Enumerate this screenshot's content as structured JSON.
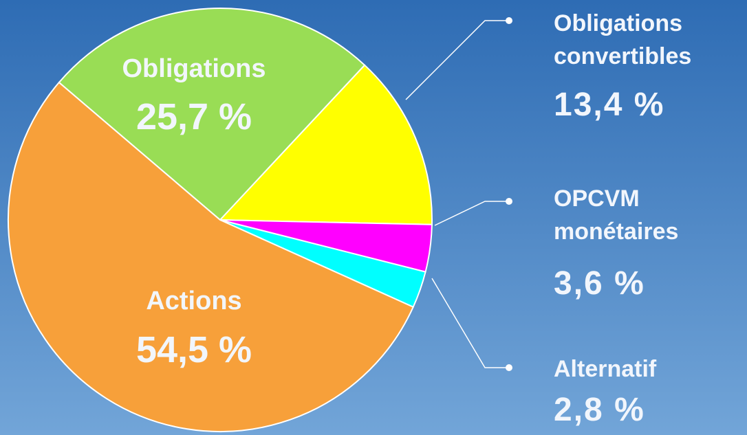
{
  "chart_data": {
    "type": "pie",
    "categories": [
      "Obligations",
      "Obligations convertibles",
      "OPCVM monétaires",
      "Alternatif",
      "Actions"
    ],
    "values": [
      25.7,
      13.4,
      3.6,
      2.8,
      54.5
    ],
    "value_labels": [
      "25,7 %",
      "13,4 %",
      "3,6 %",
      "2,8 %",
      "54,5 %"
    ],
    "colors": [
      "#99dd55",
      "#ffff00",
      "#ff00ff",
      "#00ffff",
      "#f7a03a"
    ]
  }
}
